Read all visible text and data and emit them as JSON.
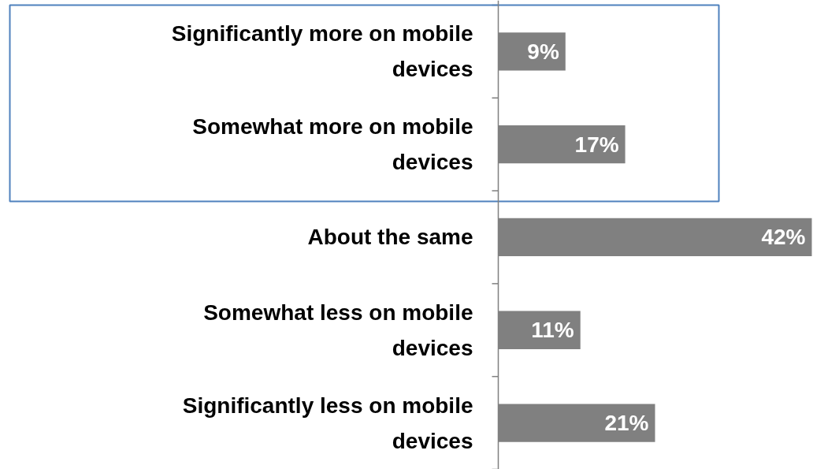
{
  "chart_data": {
    "type": "bar",
    "orientation": "horizontal",
    "data_labels": true,
    "categories": [
      "Significantly more on mobile devices",
      "Somewhat more on mobile devices",
      "About the same",
      "Somewhat less on mobile devices",
      "Significantly less on mobile devices"
    ],
    "values": [
      9,
      17,
      42,
      11,
      21
    ],
    "value_labels": [
      "9%",
      "17%",
      "42%",
      "11%",
      "21%"
    ],
    "color": "#808080"
  }
}
